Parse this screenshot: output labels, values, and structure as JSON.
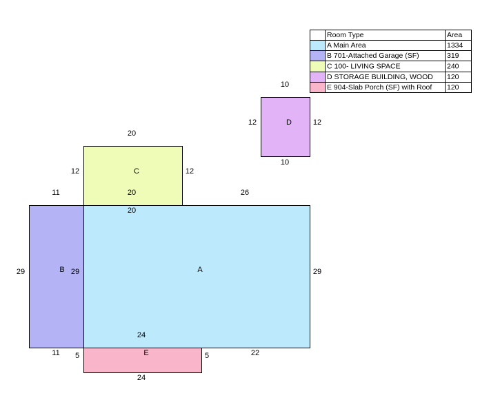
{
  "legend": {
    "header": [
      "Room Type",
      "Area"
    ],
    "rows": [
      {
        "name": "A Main Area",
        "area": "1334"
      },
      {
        "name": "B 701-Attached Garage (SF)",
        "area": "319"
      },
      {
        "name": "C 100- LIVING SPACE",
        "area": "240"
      },
      {
        "name": "D STORAGE BUILDING, WOOD",
        "area": "120"
      },
      {
        "name": "E 904-Slab Porch (SF) with Roof",
        "area": "120"
      }
    ]
  },
  "rooms": [
    {
      "label": "A",
      "dimensions": [
        "20",
        "26",
        "29",
        "29",
        "24",
        "22"
      ]
    },
    {
      "label": "B",
      "dimensions": [
        "11",
        "29",
        "11"
      ]
    },
    {
      "label": "C",
      "dimensions": [
        "20",
        "12",
        "12",
        "20"
      ]
    },
    {
      "label": "D",
      "dimensions": [
        "10",
        "12",
        "12",
        "10"
      ]
    },
    {
      "label": "E",
      "dimensions": [
        "5",
        "5",
        "24"
      ]
    }
  ]
}
